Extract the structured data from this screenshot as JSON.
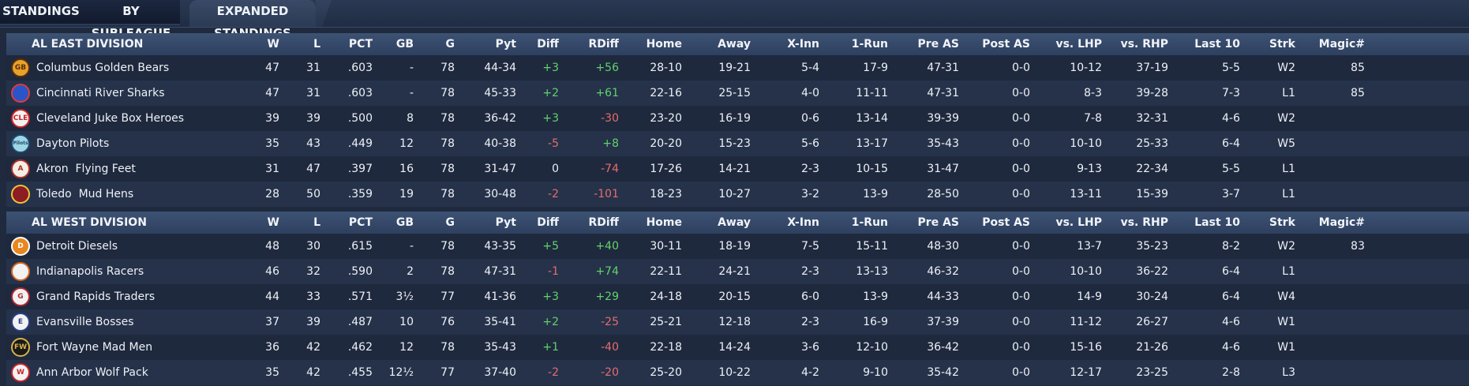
{
  "tabs": [
    {
      "label": "STANDINGS",
      "active": false
    },
    {
      "label": "BY SUBLEAGUE",
      "active": false
    },
    {
      "label": "EXPANDED STANDINGS",
      "active": true
    }
  ],
  "columns": [
    "W",
    "L",
    "PCT",
    "GB",
    "G",
    "Pyt",
    "Diff",
    "RDiff",
    "Home",
    "Away",
    "X-Inn",
    "1-Run",
    "Pre AS",
    "Post AS",
    "vs. LHP",
    "vs. RHP",
    "Last 10",
    "Strk",
    "Magic#"
  ],
  "divisions": [
    {
      "name": "AL EAST DIVISION",
      "teams": [
        {
          "name": "Columbus Golden Bears",
          "logo": {
            "icon": "golden-bear-logo-icon",
            "text": "GB",
            "bg": "#e8a12a",
            "fg": "#5a2d0c"
          },
          "W": "47",
          "L": "31",
          "PCT": ".603",
          "GB": "-",
          "G": "78",
          "Pyt": "44-34",
          "Diff": "+3",
          "RDiff": "+56",
          "Home": "28-10",
          "Away": "19-21",
          "X-Inn": "5-4",
          "1-Run": "17-9",
          "Pre AS": "47-31",
          "Post AS": "0-0",
          "vs. LHP": "10-12",
          "vs. RHP": "37-19",
          "Last 10": "5-5",
          "Strk": "W2",
          "Magic#": "85"
        },
        {
          "name": "Cincinnati River Sharks",
          "logo": {
            "icon": "river-shark-logo-icon",
            "text": "",
            "bg": "#2a55c8",
            "fg": "#e23a3a"
          },
          "W": "47",
          "L": "31",
          "PCT": ".603",
          "GB": "-",
          "G": "78",
          "Pyt": "45-33",
          "Diff": "+2",
          "RDiff": "+61",
          "Home": "22-16",
          "Away": "25-15",
          "X-Inn": "4-0",
          "1-Run": "11-11",
          "Pre AS": "47-31",
          "Post AS": "0-0",
          "vs. LHP": "8-3",
          "vs. RHP": "39-28",
          "Last 10": "7-3",
          "Strk": "L1",
          "Magic#": "85"
        },
        {
          "name": "Cleveland Juke Box Heroes",
          "logo": {
            "icon": "juke-box-logo-icon",
            "text": "CLE",
            "bg": "#f2f2f2",
            "fg": "#c8242a"
          },
          "W": "39",
          "L": "39",
          "PCT": ".500",
          "GB": "8",
          "G": "78",
          "Pyt": "36-42",
          "Diff": "+3",
          "RDiff": "-30",
          "Home": "23-20",
          "Away": "16-19",
          "X-Inn": "0-6",
          "1-Run": "13-14",
          "Pre AS": "39-39",
          "Post AS": "0-0",
          "vs. LHP": "7-8",
          "vs. RHP": "32-31",
          "Last 10": "4-6",
          "Strk": "W2",
          "Magic#": ""
        },
        {
          "name": "Dayton Pilots",
          "logo": {
            "icon": "pilots-script-logo-icon",
            "text": "Pilots",
            "bg": "#9fd6e6",
            "fg": "#1c4a6e"
          },
          "W": "35",
          "L": "43",
          "PCT": ".449",
          "GB": "12",
          "G": "78",
          "Pyt": "40-38",
          "Diff": "-5",
          "RDiff": "+8",
          "Home": "20-20",
          "Away": "15-23",
          "X-Inn": "5-6",
          "1-Run": "13-17",
          "Pre AS": "35-43",
          "Post AS": "0-0",
          "vs. LHP": "10-10",
          "vs. RHP": "25-33",
          "Last 10": "6-4",
          "Strk": "W5",
          "Magic#": ""
        },
        {
          "name": "Akron  Flying Feet",
          "logo": {
            "icon": "letter-a-logo-icon",
            "text": "A",
            "bg": "#f4efe6",
            "fg": "#b0302a"
          },
          "W": "31",
          "L": "47",
          "PCT": ".397",
          "GB": "16",
          "G": "78",
          "Pyt": "31-47",
          "Diff": "0",
          "RDiff": "-74",
          "Home": "17-26",
          "Away": "14-21",
          "X-Inn": "2-3",
          "1-Run": "10-15",
          "Pre AS": "31-47",
          "Post AS": "0-0",
          "vs. LHP": "9-13",
          "vs. RHP": "22-34",
          "Last 10": "5-5",
          "Strk": "L1",
          "Magic#": ""
        },
        {
          "name": "Toledo  Mud Hens",
          "logo": {
            "icon": "mud-hen-logo-icon",
            "text": "",
            "bg": "#8c1d22",
            "fg": "#f0c23a"
          },
          "W": "28",
          "L": "50",
          "PCT": ".359",
          "GB": "19",
          "G": "78",
          "Pyt": "30-48",
          "Diff": "-2",
          "RDiff": "-101",
          "Home": "18-23",
          "Away": "10-27",
          "X-Inn": "3-2",
          "1-Run": "13-9",
          "Pre AS": "28-50",
          "Post AS": "0-0",
          "vs. LHP": "13-11",
          "vs. RHP": "15-39",
          "Last 10": "3-7",
          "Strk": "L1",
          "Magic#": ""
        }
      ]
    },
    {
      "name": "AL WEST DIVISION",
      "teams": [
        {
          "name": "Detroit Diesels",
          "logo": {
            "icon": "diesels-logo-icon",
            "text": "D",
            "bg": "#e8871f",
            "fg": "#ffffff"
          },
          "W": "48",
          "L": "30",
          "PCT": ".615",
          "GB": "-",
          "G": "78",
          "Pyt": "43-35",
          "Diff": "+5",
          "RDiff": "+40",
          "Home": "30-11",
          "Away": "18-19",
          "X-Inn": "7-5",
          "1-Run": "15-11",
          "Pre AS": "48-30",
          "Post AS": "0-0",
          "vs. LHP": "13-7",
          "vs. RHP": "35-23",
          "Last 10": "8-2",
          "Strk": "W2",
          "Magic#": "83"
        },
        {
          "name": "Indianapolis Racers",
          "logo": {
            "icon": "checkered-flag-logo-icon",
            "text": "",
            "bg": "#f2f2f2",
            "fg": "#d3671f"
          },
          "W": "46",
          "L": "32",
          "PCT": ".590",
          "GB": "2",
          "G": "78",
          "Pyt": "47-31",
          "Diff": "-1",
          "RDiff": "+74",
          "Home": "22-11",
          "Away": "24-21",
          "X-Inn": "2-3",
          "1-Run": "13-13",
          "Pre AS": "46-32",
          "Post AS": "0-0",
          "vs. LHP": "10-10",
          "vs. RHP": "36-22",
          "Last 10": "6-4",
          "Strk": "L1",
          "Magic#": ""
        },
        {
          "name": "Grand Rapids Traders",
          "logo": {
            "icon": "letter-g-logo-icon",
            "text": "G",
            "bg": "#f2f2f2",
            "fg": "#b02633"
          },
          "W": "44",
          "L": "33",
          "PCT": ".571",
          "GB": "3½",
          "G": "77",
          "Pyt": "41-36",
          "Diff": "+3",
          "RDiff": "+29",
          "Home": "24-18",
          "Away": "20-15",
          "X-Inn": "6-0",
          "1-Run": "13-9",
          "Pre AS": "44-33",
          "Post AS": "0-0",
          "vs. LHP": "14-9",
          "vs. RHP": "30-24",
          "Last 10": "6-4",
          "Strk": "W4",
          "Magic#": ""
        },
        {
          "name": "Evansville Bosses",
          "logo": {
            "icon": "letter-e-logo-icon",
            "text": "E",
            "bg": "#f2f2f2",
            "fg": "#2a3f8c"
          },
          "W": "37",
          "L": "39",
          "PCT": ".487",
          "GB": "10",
          "G": "76",
          "Pyt": "35-41",
          "Diff": "+2",
          "RDiff": "-25",
          "Home": "25-21",
          "Away": "12-18",
          "X-Inn": "2-3",
          "1-Run": "16-9",
          "Pre AS": "37-39",
          "Post AS": "0-0",
          "vs. LHP": "11-12",
          "vs. RHP": "26-27",
          "Last 10": "4-6",
          "Strk": "W1",
          "Magic#": ""
        },
        {
          "name": "Fort Wayne Mad Men",
          "logo": {
            "icon": "fw-shield-logo-icon",
            "text": "FW",
            "bg": "#1a1a1a",
            "fg": "#d8b24a"
          },
          "W": "36",
          "L": "42",
          "PCT": ".462",
          "GB": "12",
          "G": "78",
          "Pyt": "35-43",
          "Diff": "+1",
          "RDiff": "-40",
          "Home": "22-18",
          "Away": "14-24",
          "X-Inn": "3-6",
          "1-Run": "12-10",
          "Pre AS": "36-42",
          "Post AS": "0-0",
          "vs. LHP": "15-16",
          "vs. RHP": "21-26",
          "Last 10": "4-6",
          "Strk": "W1",
          "Magic#": ""
        },
        {
          "name": "Ann Arbor Wolf Pack",
          "logo": {
            "icon": "wolf-pack-logo-icon",
            "text": "W",
            "bg": "#f2f2f2",
            "fg": "#c8242a"
          },
          "W": "35",
          "L": "42",
          "PCT": ".455",
          "GB": "12½",
          "G": "77",
          "Pyt": "37-40",
          "Diff": "-2",
          "RDiff": "-20",
          "Home": "25-20",
          "Away": "10-22",
          "X-Inn": "4-2",
          "1-Run": "9-10",
          "Pre AS": "35-42",
          "Post AS": "0-0",
          "vs. LHP": "12-17",
          "vs. RHP": "23-25",
          "Last 10": "2-8",
          "Strk": "L3",
          "Magic#": ""
        }
      ]
    }
  ]
}
